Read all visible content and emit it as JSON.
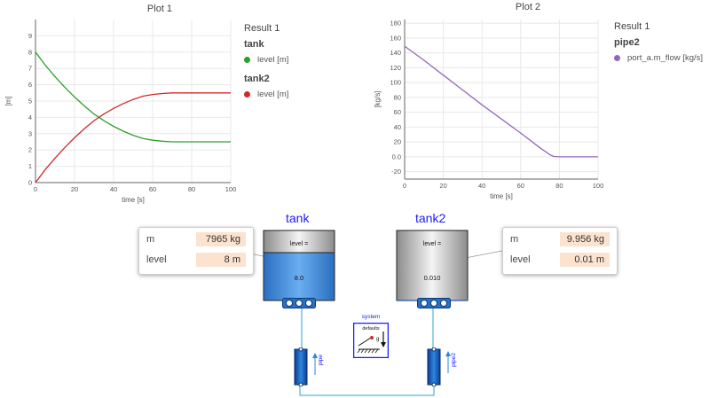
{
  "plot1": {
    "title": "Plot 1",
    "legend": {
      "result": "Result 1",
      "groups": [
        {
          "name": "tank",
          "item": "level [m]",
          "color": "#2ca02c"
        },
        {
          "name": "tank2",
          "item": "level [m]",
          "color": "#d62728"
        }
      ]
    }
  },
  "plot2": {
    "title": "Plot 2",
    "legend": {
      "result": "Result 1",
      "groups": [
        {
          "name": "pipe2",
          "item": "port_a.m_flow [kg/s]",
          "color": "#9467bd"
        }
      ]
    }
  },
  "chart_data": [
    {
      "type": "line",
      "title": "Plot 1",
      "xlabel": "time [s]",
      "ylabel": "[m]",
      "xlim": [
        0,
        100
      ],
      "ylim": [
        0,
        10
      ],
      "xticks": [
        0,
        20,
        40,
        60,
        80,
        100
      ],
      "yticks": [
        0,
        1,
        2,
        3,
        4,
        5,
        6,
        7,
        8,
        9
      ],
      "grid": true,
      "series": [
        {
          "name": "tank level [m]",
          "color": "#2ca02c",
          "x": [
            0,
            5,
            10,
            15,
            20,
            25,
            30,
            35,
            40,
            45,
            50,
            55,
            60,
            65,
            70,
            75,
            80,
            90,
            100
          ],
          "y": [
            8,
            7.2,
            6.5,
            5.85,
            5.25,
            4.7,
            4.2,
            3.8,
            3.45,
            3.15,
            2.9,
            2.7,
            2.6,
            2.54,
            2.5,
            2.5,
            2.5,
            2.5,
            2.5
          ]
        },
        {
          "name": "tank2 level [m]",
          "color": "#d62728",
          "x": [
            0,
            5,
            10,
            15,
            20,
            25,
            30,
            35,
            40,
            45,
            50,
            55,
            60,
            65,
            70,
            75,
            80,
            90,
            100
          ],
          "y": [
            0,
            0.8,
            1.5,
            2.15,
            2.75,
            3.3,
            3.8,
            4.2,
            4.55,
            4.85,
            5.1,
            5.3,
            5.4,
            5.46,
            5.5,
            5.5,
            5.5,
            5.5,
            5.5
          ]
        }
      ]
    },
    {
      "type": "line",
      "title": "Plot 2",
      "xlabel": "time [s]",
      "ylabel": "[kg/s]",
      "xlim": [
        0,
        100
      ],
      "ylim": [
        -30,
        185
      ],
      "xticks": [
        0,
        20,
        40,
        60,
        80,
        100
      ],
      "yticks": [
        -20,
        0,
        20,
        40,
        60,
        80,
        100,
        120,
        140,
        160,
        180
      ],
      "ytick_labels": [
        "-20",
        "0.0",
        "20",
        "40",
        "60",
        "80",
        "100",
        "120",
        "140",
        "160",
        "180"
      ],
      "grid": true,
      "series": [
        {
          "name": "pipe2 port_a.m_flow [kg/s]",
          "color": "#9467bd",
          "x": [
            0,
            10,
            20,
            30,
            40,
            50,
            60,
            70,
            75,
            77,
            80,
            90,
            100
          ],
          "y": [
            149,
            130,
            110,
            90,
            70,
            51,
            32,
            12,
            3,
            0.5,
            0,
            0,
            0
          ]
        }
      ]
    }
  ],
  "diagram": {
    "tank": {
      "title": "tank",
      "label": "level =",
      "value": "8.0",
      "info": {
        "m_label": "m",
        "m_value": "7965 kg",
        "level_label": "level",
        "level_value": "8 m"
      }
    },
    "tank2": {
      "title": "tank2",
      "label": "level =",
      "value": "0.010",
      "info": {
        "m_label": "m",
        "m_value": "9.956 kg",
        "level_label": "level",
        "level_value": "0.01 m"
      }
    },
    "system": {
      "title": "system",
      "defaults": "defaults",
      "g": "g"
    },
    "pipe": {
      "label": "pipe"
    },
    "pipe2": {
      "label": "pipe2"
    }
  }
}
